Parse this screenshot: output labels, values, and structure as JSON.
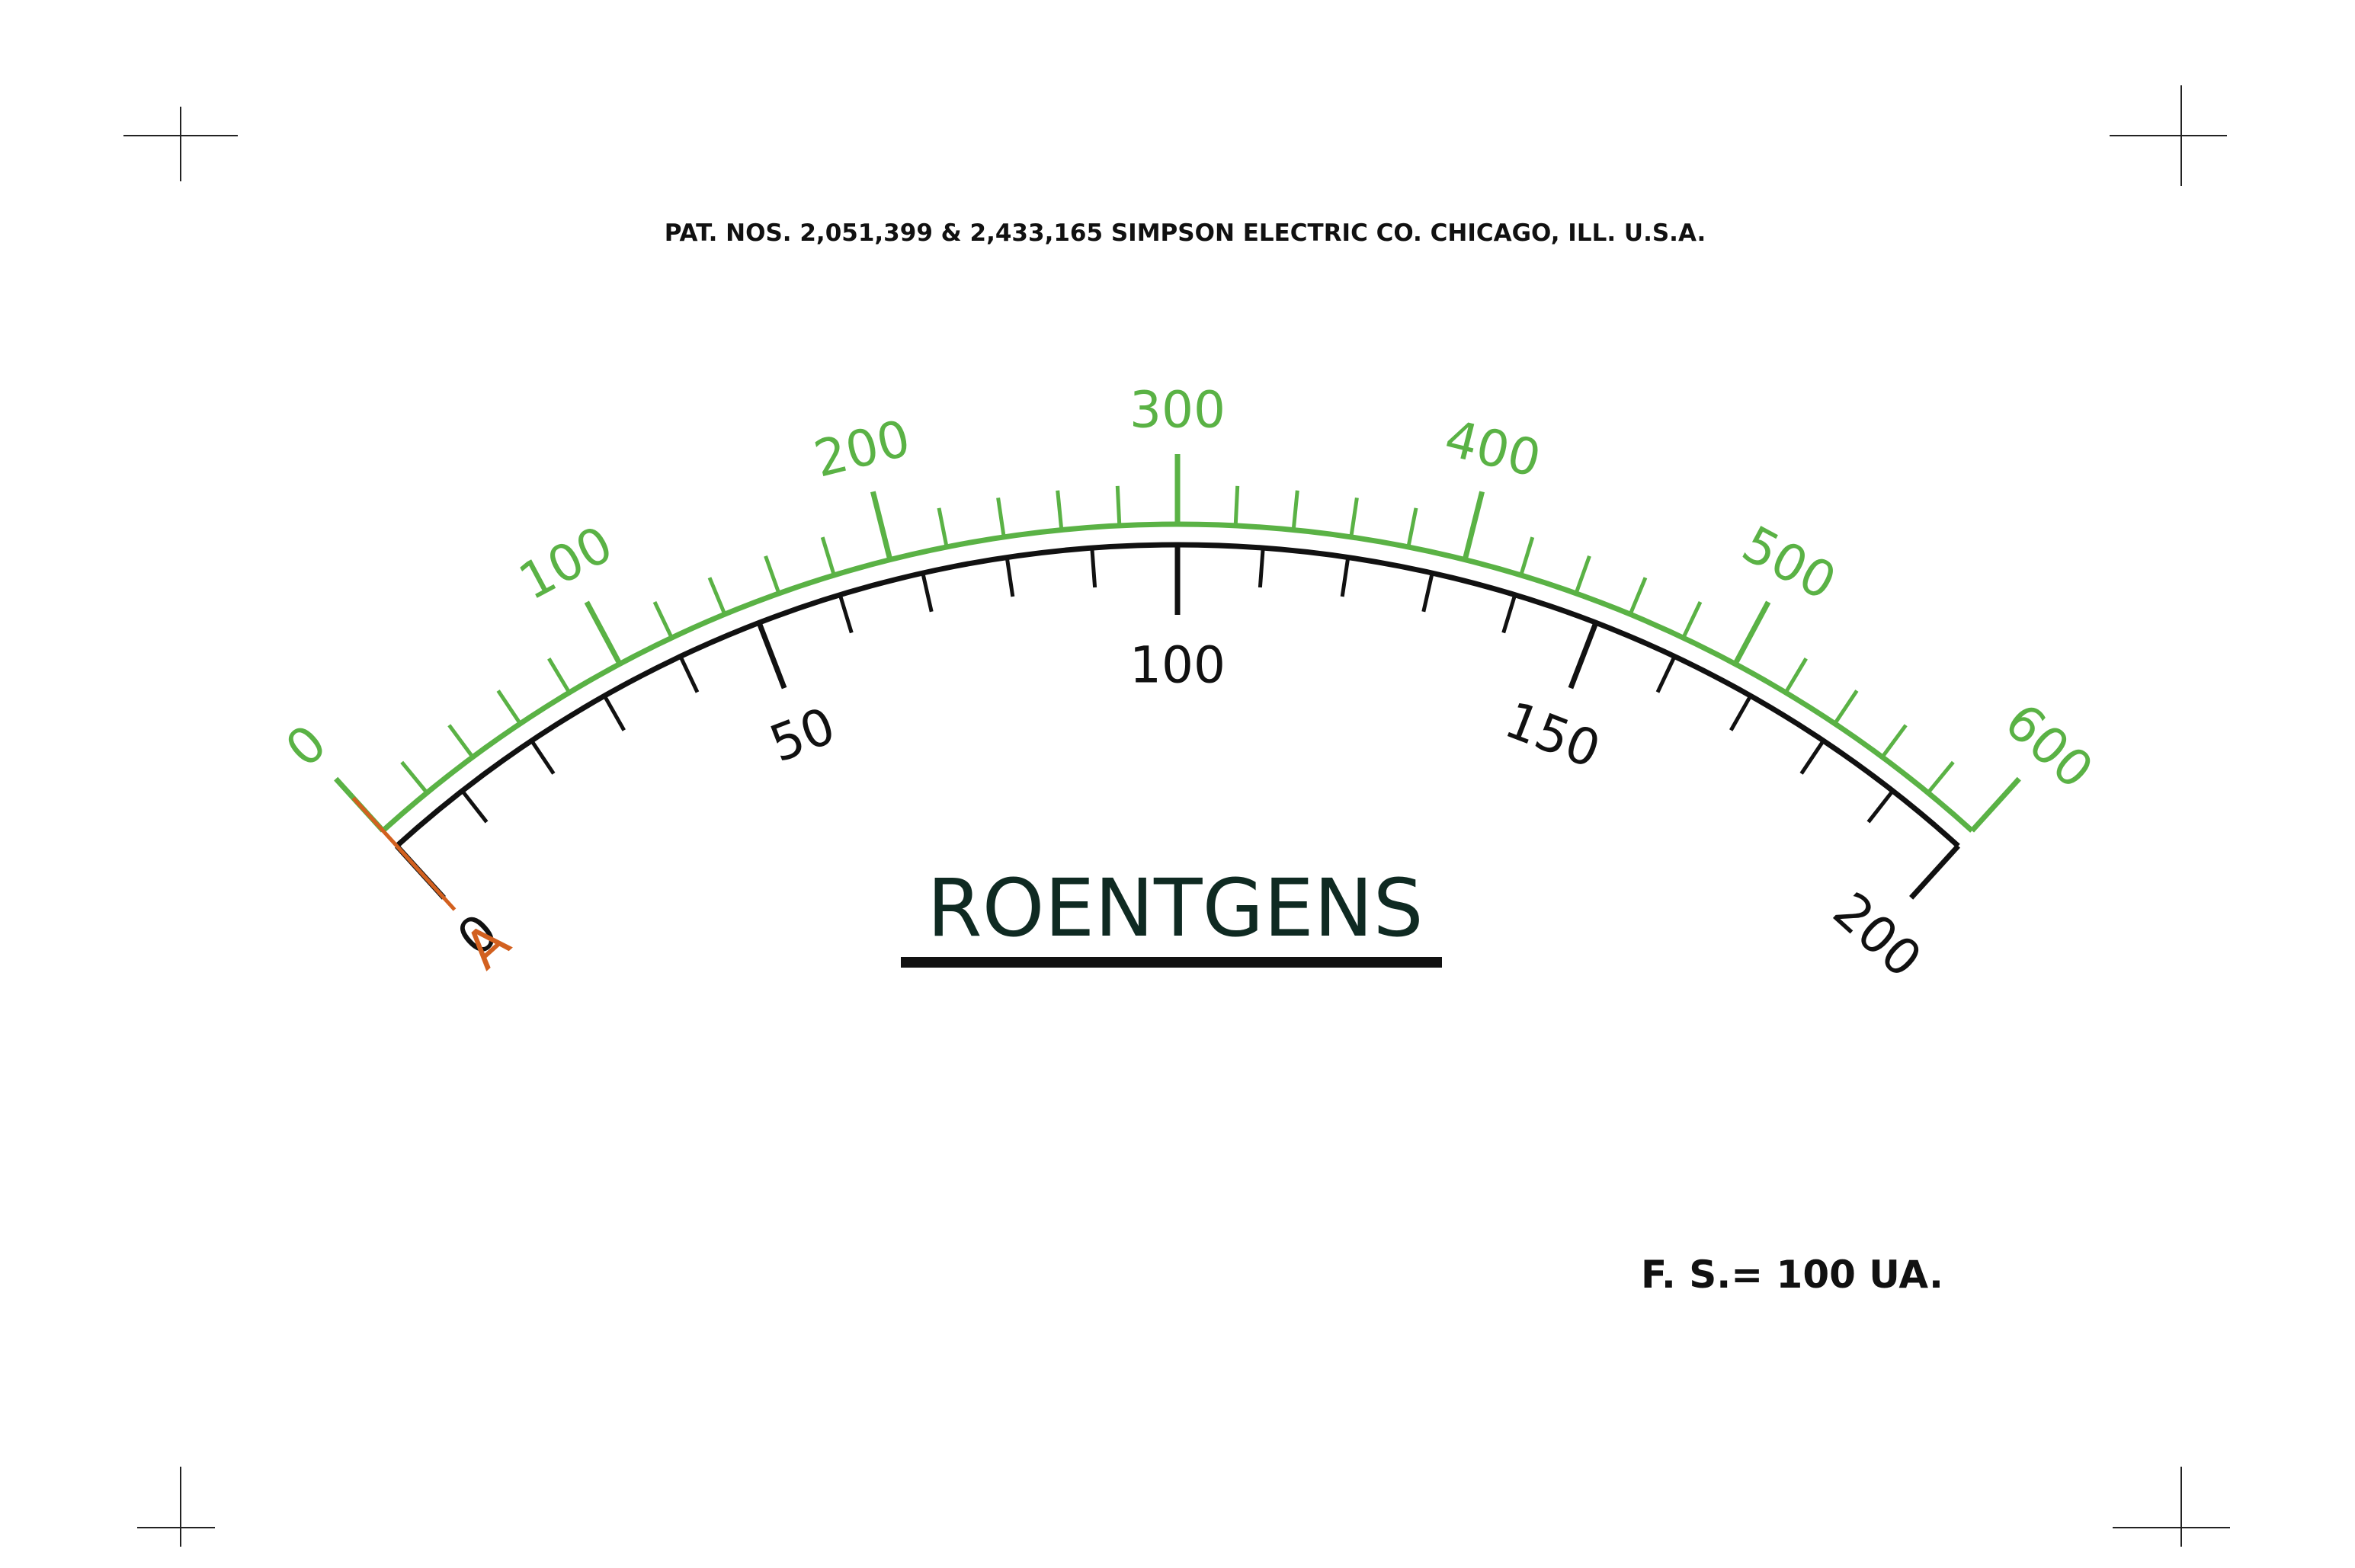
{
  "patent_text": "PAT. NOS. 2,051,399 & 2,433,165 SIMPSON ELECTRIC CO. CHICAGO, ILL. U.S.A.",
  "unit_label": "ROENTGENS",
  "full_scale_text": "F. S.= 100 UA.",
  "zero_mark_label": "A",
  "colors": {
    "outer_scale": "#5ab245",
    "inner_scale": "#111111",
    "zero_mark": "#d2601f",
    "unit_label": "#0f2a22",
    "crop_marks": "#222222"
  },
  "outer_scale": {
    "min": 0,
    "max": 600,
    "major_step": 100,
    "minor_step": 20,
    "labels": [
      "0",
      "100",
      "200",
      "300",
      "400",
      "500",
      "600"
    ]
  },
  "inner_scale": {
    "min": 0,
    "max": 200,
    "major_step": 50,
    "minor_step": 10,
    "labels": [
      "0",
      "50",
      "100",
      "150",
      "200"
    ]
  }
}
